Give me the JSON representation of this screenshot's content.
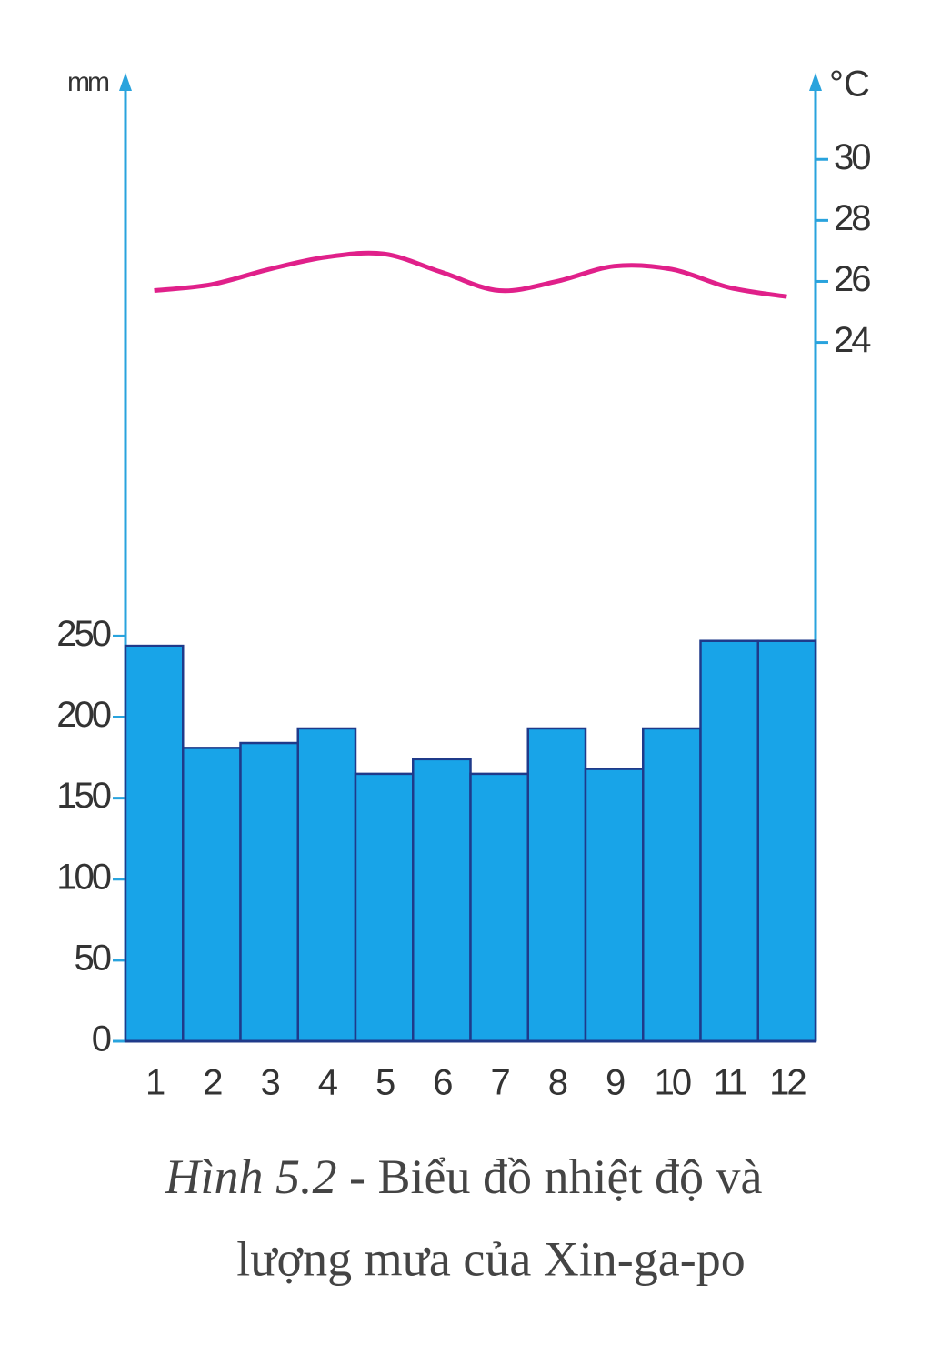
{
  "chart_data": {
    "type": "bar",
    "y_label": "mm",
    "y2_label": "°C",
    "figure_label": "Hình 5.2",
    "title_lines": [
      "- Biểu đồ nhiệt độ và",
      "lượng mưa của Xin-ga-po"
    ],
    "categories": [
      "1",
      "2",
      "3",
      "4",
      "5",
      "6",
      "7",
      "8",
      "9",
      "10",
      "11",
      "12"
    ],
    "series": [
      {
        "type": "bar",
        "color": "#18a4e8",
        "values": [
          244,
          181,
          184,
          193,
          165,
          174,
          165,
          193,
          168,
          193,
          247,
          247
        ]
      },
      {
        "type": "line",
        "axis": "y2",
        "color": "#e0208a",
        "values": [
          25.7,
          25.9,
          26.4,
          26.8,
          26.9,
          26.3,
          25.7,
          26.0,
          26.5,
          26.4,
          25.8,
          25.5
        ]
      }
    ],
    "ylim": [
      0,
      593
    ],
    "yticks": [
      0,
      50,
      100,
      150,
      200,
      250
    ],
    "y2lim": [
      1.1,
      32.6
    ],
    "y2ticks": [
      24,
      26,
      28,
      30
    ]
  }
}
